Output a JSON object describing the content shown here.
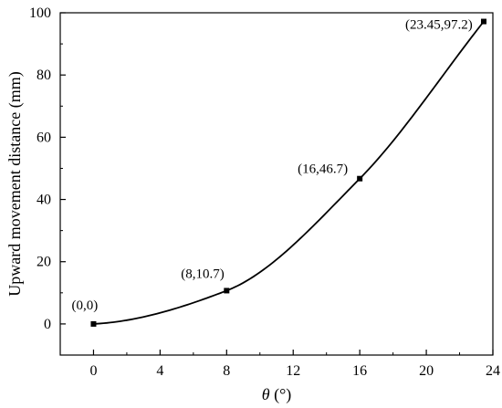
{
  "chart_data": {
    "type": "line",
    "title": "",
    "xlabel_symbol": "θ",
    "xlabel_unit": " (°)",
    "ylabel": "Upward movement distance (mm)",
    "xlim": [
      -2,
      24
    ],
    "ylim": [
      -10,
      100
    ],
    "x_ticks": [
      0,
      4,
      8,
      12,
      16,
      20,
      24
    ],
    "y_ticks": [
      0,
      20,
      40,
      60,
      80,
      100
    ],
    "x_tick_labels": [
      "0",
      "4",
      "8",
      "12",
      "16",
      "20",
      "24"
    ],
    "y_tick_labels": [
      "0",
      "20",
      "40",
      "60",
      "80",
      "100"
    ],
    "grid": false,
    "legend": "none",
    "series": [
      {
        "x": [
          0,
          8,
          16,
          23.45
        ],
        "y": [
          0,
          10.7,
          46.7,
          97.2
        ],
        "color": "#000000",
        "marker": "square",
        "smooth": true
      }
    ],
    "annotations": [
      {
        "text": "(0,0)",
        "x": 0,
        "y": 0
      },
      {
        "text": "(8,10.7)",
        "x": 8,
        "y": 10.7
      },
      {
        "text": "(16,46.7)",
        "x": 16,
        "y": 46.7
      },
      {
        "text": "(23.45,97.2)",
        "x": 23.45,
        "y": 97.2
      }
    ]
  }
}
